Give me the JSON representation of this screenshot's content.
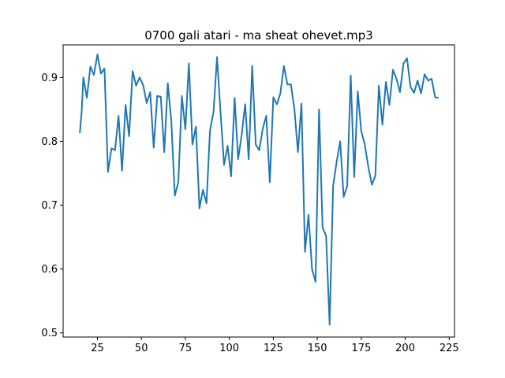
{
  "chart_data": {
    "type": "line",
    "title": "0700 gali atari - ma sheat ohevet.mp3",
    "xlabel": "",
    "ylabel": "",
    "xlim": [
      5.5,
      228
    ],
    "ylim": [
      0.4935,
      0.951
    ],
    "x_ticks": [
      25,
      50,
      75,
      100,
      125,
      150,
      175,
      200,
      225
    ],
    "x_tick_labels": [
      "25",
      "50",
      "75",
      "100",
      "125",
      "150",
      "175",
      "200",
      "225"
    ],
    "y_ticks": [
      0.5,
      0.6,
      0.7,
      0.8,
      0.9
    ],
    "y_tick_labels": [
      "0.5",
      "0.6",
      "0.7",
      "0.8",
      "0.9"
    ],
    "grid": false,
    "legend": "none",
    "series": [
      {
        "color": "#1f77b4",
        "x": [
          15,
          16,
          17,
          19,
          21,
          23,
          25,
          27,
          29,
          31,
          33,
          35,
          37,
          39,
          41,
          43,
          45,
          47,
          49,
          51,
          53,
          55,
          57,
          59,
          61,
          63,
          65,
          67,
          69,
          71,
          73,
          75,
          77,
          79,
          81,
          83,
          85,
          87,
          89,
          91,
          93,
          95,
          97,
          99,
          101,
          103,
          105,
          107,
          109,
          111,
          113,
          115,
          117,
          119,
          121,
          123,
          125,
          127,
          129,
          131,
          133,
          135,
          137,
          139,
          141,
          143,
          145,
          147,
          149,
          151,
          153,
          155,
          157,
          159,
          161,
          163,
          165,
          167,
          169,
          171,
          173,
          175,
          177,
          179,
          181,
          183,
          185,
          187,
          189,
          191,
          193,
          195,
          197,
          199,
          201,
          203,
          205,
          207,
          209,
          211,
          213,
          215,
          217,
          219
        ],
        "y": [
          0.813,
          0.845,
          0.9,
          0.868,
          0.917,
          0.904,
          0.936,
          0.906,
          0.914,
          0.752,
          0.789,
          0.786,
          0.84,
          0.754,
          0.857,
          0.808,
          0.91,
          0.887,
          0.9,
          0.888,
          0.86,
          0.877,
          0.79,
          0.871,
          0.87,
          0.783,
          0.891,
          0.832,
          0.715,
          0.736,
          0.871,
          0.819,
          0.922,
          0.795,
          0.823,
          0.695,
          0.724,
          0.703,
          0.817,
          0.846,
          0.932,
          0.845,
          0.763,
          0.793,
          0.745,
          0.868,
          0.772,
          0.81,
          0.858,
          0.772,
          0.918,
          0.795,
          0.786,
          0.82,
          0.84,
          0.736,
          0.869,
          0.858,
          0.875,
          0.918,
          0.889,
          0.889,
          0.85,
          0.783,
          0.859,
          0.627,
          0.685,
          0.6,
          0.58,
          0.85,
          0.665,
          0.652,
          0.513,
          0.73,
          0.768,
          0.8,
          0.713,
          0.73,
          0.903,
          0.744,
          0.878,
          0.816,
          0.795,
          0.76,
          0.732,
          0.746,
          0.887,
          0.826,
          0.893,
          0.857,
          0.912,
          0.898,
          0.877,
          0.922,
          0.93,
          0.885,
          0.876,
          0.895,
          0.875,
          0.905,
          0.895,
          0.898,
          0.869,
          0.868
        ]
      }
    ]
  }
}
